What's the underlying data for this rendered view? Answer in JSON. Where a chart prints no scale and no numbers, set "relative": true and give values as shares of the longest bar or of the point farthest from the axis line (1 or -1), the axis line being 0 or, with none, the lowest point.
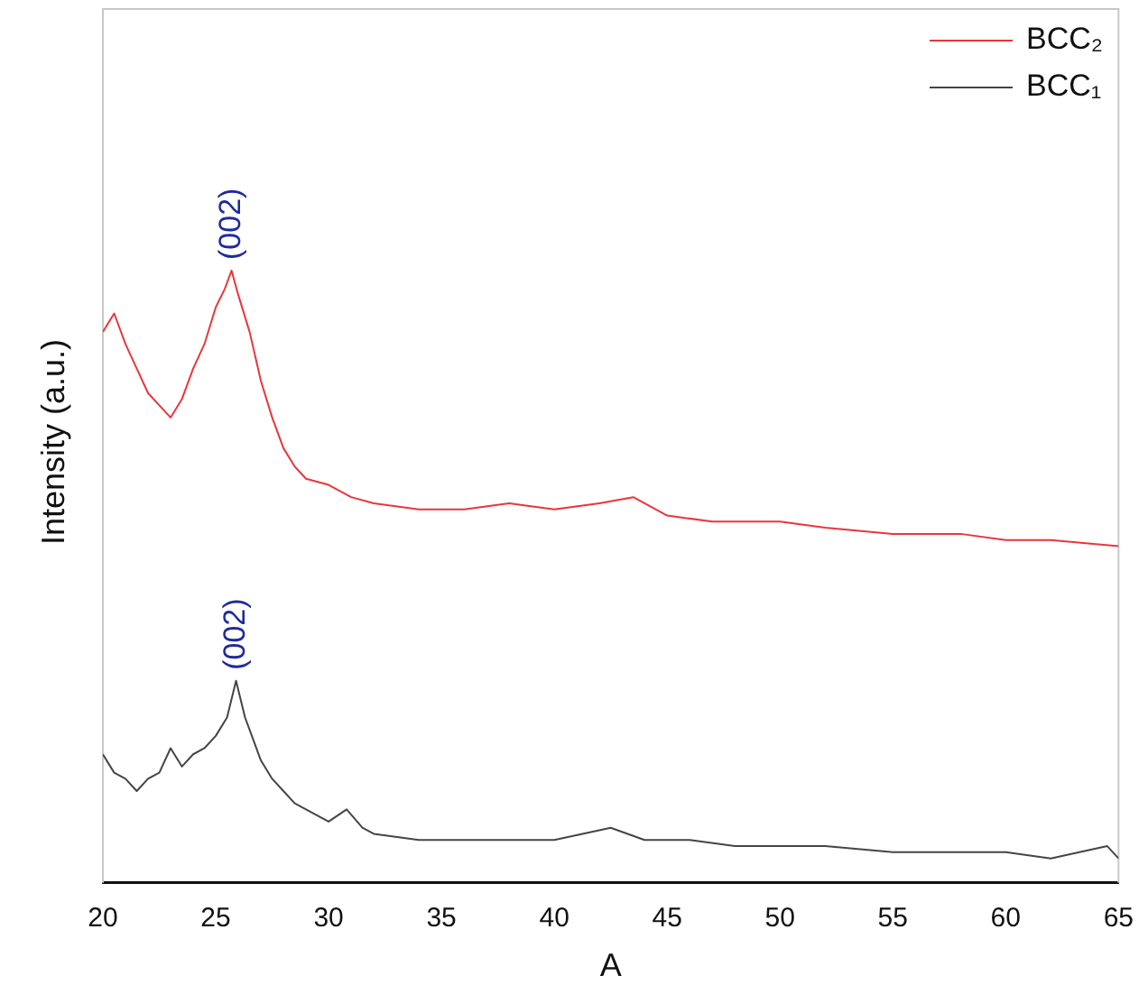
{
  "chart_data": {
    "type": "line",
    "xlabel": "A",
    "ylabel": "Intensity (a.u.)",
    "relative": true,
    "xlim": [
      20,
      65
    ],
    "xticks": [
      20,
      25,
      30,
      35,
      40,
      45,
      50,
      55,
      60,
      65
    ],
    "legend": "top right",
    "marker": "none",
    "grid": false,
    "annotations": [
      {
        "text": "(002)",
        "x": 25.7,
        "y": 1.0
      },
      {
        "text": "(002)",
        "x": 25.9,
        "y": 0.33
      }
    ],
    "series": [
      {
        "name": "BCC₂",
        "color": "#e8363b",
        "x": [
          20,
          20.5,
          21,
          21.5,
          22,
          22.5,
          23,
          23.5,
          24,
          24.5,
          25,
          25.4,
          25.7,
          26,
          26.5,
          27,
          27.5,
          28,
          28.5,
          29,
          30,
          31,
          32,
          34,
          36,
          38,
          40,
          42,
          43.5,
          45,
          47,
          50,
          52,
          55,
          58,
          60,
          62,
          65
        ],
        "values": [
          0.9,
          0.93,
          0.88,
          0.84,
          0.8,
          0.78,
          0.76,
          0.79,
          0.84,
          0.88,
          0.94,
          0.97,
          1.0,
          0.96,
          0.9,
          0.82,
          0.76,
          0.71,
          0.68,
          0.66,
          0.65,
          0.63,
          0.62,
          0.61,
          0.61,
          0.62,
          0.61,
          0.62,
          0.63,
          0.6,
          0.59,
          0.59,
          0.58,
          0.57,
          0.57,
          0.56,
          0.56,
          0.55
        ]
      },
      {
        "name": "BCC₁",
        "color": "#454545",
        "x": [
          20,
          20.5,
          21,
          21.5,
          22,
          22.5,
          23,
          23.5,
          24,
          24.5,
          25,
          25.5,
          25.9,
          26.3,
          26.7,
          27,
          27.5,
          28,
          28.5,
          29,
          30,
          30.8,
          31.5,
          32,
          34,
          36,
          38,
          40,
          42.5,
          44,
          46,
          48,
          50,
          52,
          55,
          58,
          60,
          62,
          64.5,
          65
        ],
        "values": [
          0.21,
          0.18,
          0.17,
          0.15,
          0.17,
          0.18,
          0.22,
          0.19,
          0.21,
          0.22,
          0.24,
          0.27,
          0.33,
          0.27,
          0.23,
          0.2,
          0.17,
          0.15,
          0.13,
          0.12,
          0.1,
          0.12,
          0.09,
          0.08,
          0.07,
          0.07,
          0.07,
          0.07,
          0.09,
          0.07,
          0.07,
          0.06,
          0.06,
          0.06,
          0.05,
          0.05,
          0.05,
          0.04,
          0.06,
          0.04
        ]
      }
    ]
  }
}
